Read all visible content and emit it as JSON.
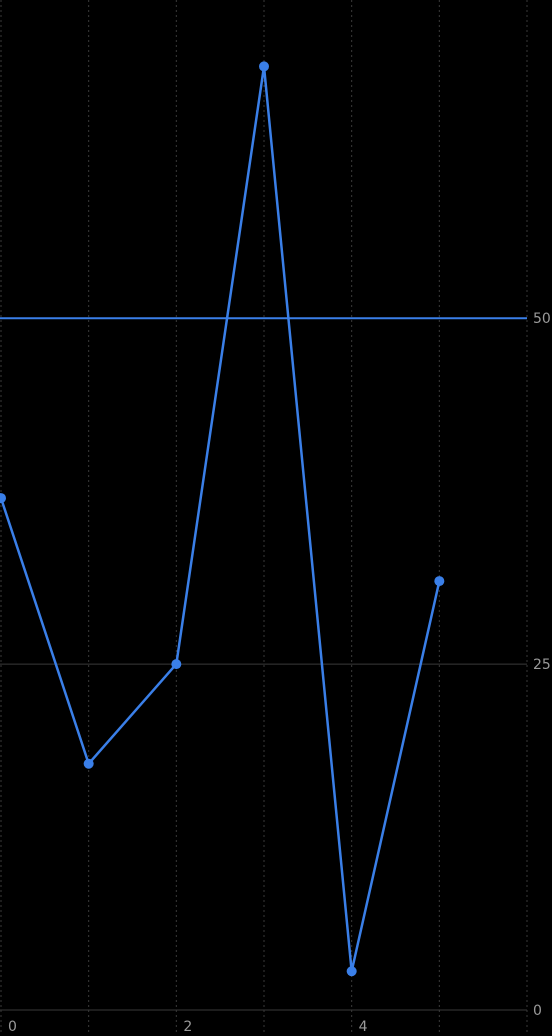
{
  "chart_data": {
    "type": "line",
    "title": "",
    "xlabel": "",
    "ylabel": "",
    "x": [
      0,
      1,
      2,
      3,
      4,
      5
    ],
    "series": [
      {
        "values": [
          37.0,
          17.8,
          25.0,
          68.2,
          2.8,
          31.0
        ],
        "color": "#3a7fe8"
      }
    ],
    "x_ticks": [
      0,
      2,
      4
    ],
    "x_tick_labels": [
      "0",
      "2",
      "4"
    ],
    "y_ticks": [
      0,
      25,
      50
    ],
    "y_tick_labels": [
      "0",
      "25",
      "50"
    ],
    "xlim": [
      0,
      6
    ],
    "ylim": [
      0,
      73
    ],
    "reference_line": {
      "y": 50,
      "color": "#3a7fe8"
    },
    "grid": {
      "vertical": true,
      "horizontal": true
    },
    "colors": {
      "background": "#000000",
      "line": "#3a7fe8",
      "grid": "#3a3a3a",
      "tick_label": "#9a9a9a"
    }
  }
}
